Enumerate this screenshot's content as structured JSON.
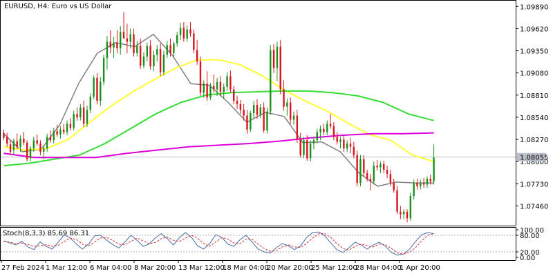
{
  "chart_header": "EURUSD, H4:  Euro vs US Dollar",
  "current_price_label": "1.08055",
  "indicator_header": "Stoch(8,3,3) 85.69 86.31",
  "colors": {
    "background": "#ffffff",
    "axis": "#000000",
    "bull": "#1a8f1a",
    "bear": "#d8141e",
    "ma_fast": "#808080",
    "ma_yellow": "#ffff33",
    "ma_green": "#33dd33",
    "ma_magenta": "#dd00dd",
    "stoch_main": "#4a6ea8",
    "stoch_signal": "#d83030",
    "price_line": "#b9bec8"
  },
  "chart_data": [
    {
      "type": "candlestick",
      "title": "EURUSD, H4:  Euro vs US Dollar",
      "ylim": [
        1.0722,
        1.0996
      ],
      "y_ticks": [
        "1.09890",
        "1.09620",
        "1.09350",
        "1.09080",
        "1.08810",
        "1.08540",
        "1.08270",
        "1.08000",
        "1.07730",
        "1.07460"
      ],
      "current_price": 1.08055,
      "x_ticks": [
        "27 Feb 2024",
        "1 Mar 12:00",
        "6 Mar 04:00",
        "8 Mar 20:00",
        "13 Mar 12:00",
        "18 Mar 04:00",
        "20 Mar 20:00",
        "25 Mar 12:00",
        "28 Mar 04:00",
        "1 Apr 20:00"
      ],
      "candles": [
        [
          1.0835,
          1.0839,
          1.0826,
          1.0829
        ],
        [
          1.083,
          1.0835,
          1.0818,
          1.0822
        ],
        [
          1.0821,
          1.0826,
          1.0808,
          1.0812
        ],
        [
          1.0814,
          1.0828,
          1.0809,
          1.0825
        ],
        [
          1.0825,
          1.0834,
          1.0815,
          1.0818
        ],
        [
          1.0818,
          1.0832,
          1.0812,
          1.0828
        ],
        [
          1.0828,
          1.0836,
          1.082,
          1.0823
        ],
        [
          1.0823,
          1.0826,
          1.08,
          1.0803
        ],
        [
          1.0804,
          1.0819,
          1.08,
          1.0816
        ],
        [
          1.0816,
          1.083,
          1.0812,
          1.0826
        ],
        [
          1.0826,
          1.0833,
          1.0819,
          1.0822
        ],
        [
          1.0822,
          1.0826,
          1.0808,
          1.0812
        ],
        [
          1.0812,
          1.082,
          1.0803,
          1.0816
        ],
        [
          1.0816,
          1.0834,
          1.0812,
          1.083
        ],
        [
          1.083,
          1.0838,
          1.0823,
          1.0826
        ],
        [
          1.0826,
          1.0841,
          1.0822,
          1.0837
        ],
        [
          1.0837,
          1.0845,
          1.083,
          1.0833
        ],
        [
          1.0833,
          1.0843,
          1.0828,
          1.0839
        ],
        [
          1.0839,
          1.0846,
          1.0833,
          1.0836
        ],
        [
          1.0836,
          1.085,
          1.0832,
          1.0846
        ],
        [
          1.0846,
          1.0853,
          1.0838,
          1.0841
        ],
        [
          1.0841,
          1.0862,
          1.0838,
          1.0858
        ],
        [
          1.0858,
          1.0866,
          1.085,
          1.0854
        ],
        [
          1.0854,
          1.087,
          1.085,
          1.0866
        ],
        [
          1.0866,
          1.0874,
          1.0842,
          1.0846
        ],
        [
          1.0846,
          1.0868,
          1.0842,
          1.0863
        ],
        [
          1.0863,
          1.0883,
          1.0859,
          1.0879
        ],
        [
          1.0879,
          1.0905,
          1.0876,
          1.0902
        ],
        [
          1.0902,
          1.0908,
          1.087,
          1.0874
        ],
        [
          1.0874,
          1.0903,
          1.0868,
          1.0897
        ],
        [
          1.0897,
          1.093,
          1.0893,
          1.0926
        ],
        [
          1.0926,
          1.0953,
          1.0912,
          1.0946
        ],
        [
          1.0946,
          1.096,
          1.0932,
          1.0939
        ],
        [
          1.0939,
          1.0952,
          1.0926,
          1.0945
        ],
        [
          1.0945,
          1.096,
          1.0932,
          1.0938
        ],
        [
          1.0938,
          1.0965,
          1.093,
          1.0958
        ],
        [
          1.0958,
          1.0982,
          1.095,
          1.095
        ],
        [
          1.095,
          1.0968,
          1.0932,
          1.0946
        ],
        [
          1.0946,
          1.0962,
          1.0938,
          1.0955
        ],
        [
          1.0955,
          1.0962,
          1.0928,
          1.0932
        ],
        [
          1.0932,
          1.0947,
          1.0928,
          1.0941
        ],
        [
          1.0941,
          1.095,
          1.0913,
          1.0917
        ],
        [
          1.0917,
          1.0933,
          1.0914,
          1.0928
        ],
        [
          1.0928,
          1.0945,
          1.0922,
          1.0941
        ],
        [
          1.0941,
          1.0948,
          1.0912,
          1.0916
        ],
        [
          1.0916,
          1.0935,
          1.091,
          1.093
        ],
        [
          1.093,
          1.0942,
          1.0922,
          1.0937
        ],
        [
          1.0937,
          1.0944,
          1.0904,
          1.0909
        ],
        [
          1.0909,
          1.0935,
          1.0905,
          1.093
        ],
        [
          1.093,
          1.0947,
          1.0926,
          1.0942
        ],
        [
          1.0942,
          1.095,
          1.0928,
          1.0932
        ],
        [
          1.0932,
          1.0946,
          1.0928,
          1.0944
        ],
        [
          1.0944,
          1.0958,
          1.094,
          1.0954
        ],
        [
          1.0954,
          1.0969,
          1.0948,
          1.0963
        ],
        [
          1.0963,
          1.097,
          1.0946,
          1.095
        ],
        [
          1.095,
          1.0966,
          1.0946,
          1.0961
        ],
        [
          1.0961,
          1.097,
          1.0952,
          1.0956
        ],
        [
          1.0956,
          1.0961,
          1.0932,
          1.0936
        ],
        [
          1.0936,
          1.0948,
          1.0918,
          1.0922
        ],
        [
          1.0922,
          1.0928,
          1.088,
          1.0884
        ],
        [
          1.0884,
          1.0899,
          1.0878,
          1.0895
        ],
        [
          1.0895,
          1.091,
          1.0874,
          1.0878
        ],
        [
          1.0878,
          1.0896,
          1.0875,
          1.0892
        ],
        [
          1.0892,
          1.0906,
          1.0884,
          1.0888
        ],
        [
          1.0888,
          1.0902,
          1.088,
          1.0897
        ],
        [
          1.0897,
          1.0904,
          1.088,
          1.0885
        ],
        [
          1.0885,
          1.0895,
          1.0876,
          1.0891
        ],
        [
          1.0891,
          1.0909,
          1.0886,
          1.0904
        ],
        [
          1.0904,
          1.0911,
          1.0884,
          1.0888
        ],
        [
          1.0888,
          1.0892,
          1.087,
          1.0874
        ],
        [
          1.0874,
          1.088,
          1.0864,
          1.087
        ],
        [
          1.087,
          1.0875,
          1.0858,
          1.0863
        ],
        [
          1.0863,
          1.087,
          1.085,
          1.0856
        ],
        [
          1.0856,
          1.0863,
          1.0834,
          1.0839
        ],
        [
          1.0839,
          1.0862,
          1.0836,
          1.0859
        ],
        [
          1.0859,
          1.0874,
          1.0853,
          1.0869
        ],
        [
          1.0869,
          1.0876,
          1.0852,
          1.0857
        ],
        [
          1.0857,
          1.087,
          1.0853,
          1.0866
        ],
        [
          1.0866,
          1.0872,
          1.0835,
          1.0838
        ],
        [
          1.0838,
          1.0866,
          1.0834,
          1.0861
        ],
        [
          1.0861,
          1.0942,
          1.0857,
          1.0936
        ],
        [
          1.0936,
          1.0943,
          1.0908,
          1.0914
        ],
        [
          1.0914,
          1.0946,
          1.0898,
          1.094
        ],
        [
          1.094,
          1.0948,
          1.0882,
          1.0888
        ],
        [
          1.0888,
          1.0899,
          1.0862,
          1.0867
        ],
        [
          1.0867,
          1.0877,
          1.0856,
          1.0872
        ],
        [
          1.0872,
          1.0878,
          1.0846,
          1.0851
        ],
        [
          1.0851,
          1.0861,
          1.0845,
          1.0856
        ],
        [
          1.0856,
          1.0863,
          1.0823,
          1.0828
        ],
        [
          1.0828,
          1.0835,
          1.0805,
          1.0808
        ],
        [
          1.0808,
          1.083,
          1.0804,
          1.0826
        ],
        [
          1.0826,
          1.0832,
          1.0801,
          1.0804
        ],
        [
          1.0804,
          1.0826,
          1.08,
          1.0822
        ],
        [
          1.0822,
          1.083,
          1.0815,
          1.0826
        ],
        [
          1.0826,
          1.084,
          1.0822,
          1.0836
        ],
        [
          1.0836,
          1.0844,
          1.0826,
          1.084
        ],
        [
          1.084,
          1.0846,
          1.0832,
          1.0836
        ],
        [
          1.0836,
          1.085,
          1.0832,
          1.0846
        ],
        [
          1.0846,
          1.0858,
          1.084,
          1.0843
        ],
        [
          1.0843,
          1.0848,
          1.0826,
          1.083
        ],
        [
          1.083,
          1.0836,
          1.0821,
          1.0824
        ],
        [
          1.0824,
          1.083,
          1.0816,
          1.0827
        ],
        [
          1.0827,
          1.0832,
          1.0812,
          1.0816
        ],
        [
          1.0816,
          1.0826,
          1.0812,
          1.0822
        ],
        [
          1.0822,
          1.0829,
          1.081,
          1.0818
        ],
        [
          1.0818,
          1.0824,
          1.0804,
          1.0808
        ],
        [
          1.0808,
          1.0813,
          1.077,
          1.0774
        ],
        [
          1.0774,
          1.0808,
          1.077,
          1.0803
        ],
        [
          1.0803,
          1.0808,
          1.0782,
          1.0786
        ],
        [
          1.0786,
          1.079,
          1.0776,
          1.0779
        ],
        [
          1.0779,
          1.0785,
          1.0765,
          1.0776
        ],
        [
          1.0776,
          1.08,
          1.0772,
          1.0795
        ],
        [
          1.0795,
          1.0802,
          1.0789,
          1.0793
        ],
        [
          1.0793,
          1.08,
          1.0786,
          1.0797
        ],
        [
          1.0797,
          1.0801,
          1.0786,
          1.079
        ],
        [
          1.079,
          1.0795,
          1.078,
          1.0785
        ],
        [
          1.0785,
          1.079,
          1.077,
          1.0774
        ],
        [
          1.0774,
          1.0779,
          1.0762,
          1.0765
        ],
        [
          1.0765,
          1.077,
          1.0736,
          1.0739
        ],
        [
          1.0739,
          1.0746,
          1.073,
          1.0736
        ],
        [
          1.0736,
          1.0742,
          1.073,
          1.0739
        ],
        [
          1.0739,
          1.0742,
          1.0726,
          1.0731
        ],
        [
          1.0731,
          1.0762,
          1.0728,
          1.0758
        ],
        [
          1.0758,
          1.0778,
          1.0754,
          1.0774
        ],
        [
          1.0774,
          1.0779,
          1.0766,
          1.077
        ],
        [
          1.077,
          1.0778,
          1.0766,
          1.0774
        ],
        [
          1.0774,
          1.078,
          1.0768,
          1.0772
        ],
        [
          1.0772,
          1.0782,
          1.0768,
          1.0779
        ],
        [
          1.0779,
          1.0784,
          1.0772,
          1.0776
        ],
        [
          1.0776,
          1.0821,
          1.0772,
          1.0805
        ]
      ],
      "series": [
        {
          "values": [
            1.0834,
            1.0812,
            1.0815,
            1.0845,
            1.0895,
            1.0932,
            1.0945,
            1.094,
            1.0955,
            1.093,
            1.0895,
            1.0893,
            1.0872,
            1.0848,
            1.086,
            1.0855,
            1.0823,
            1.0824,
            1.0812,
            1.0786,
            1.077,
            1.0775,
            1.0774,
            1.0774
          ]
        },
        {
          "values": [
            1.0818,
            1.0814,
            1.0816,
            1.0827,
            1.0848,
            1.0868,
            1.0885,
            1.09,
            1.0914,
            1.0924,
            1.0924,
            1.0918,
            1.0905,
            1.0888,
            1.0874,
            1.0862,
            1.0847,
            1.0833,
            1.0826,
            1.0808,
            1.08
          ]
        },
        {
          "values": [
            1.0795,
            1.0798,
            1.0803,
            1.0808,
            1.0822,
            1.084,
            1.0858,
            1.0872,
            1.0881,
            1.0884,
            1.0885,
            1.0886,
            1.0886,
            1.0884,
            1.088,
            1.0872,
            1.0858,
            1.085
          ]
        },
        {
          "values": [
            1.081,
            1.0805,
            1.0805,
            1.0805,
            1.081,
            1.0814,
            1.0818,
            1.082,
            1.0822,
            1.0825,
            1.0829,
            1.0832,
            1.0834,
            1.0834,
            1.0835
          ]
        }
      ]
    },
    {
      "type": "line",
      "title": "Stoch(8,3,3) 85.69 86.31",
      "ylim": [
        0,
        100
      ],
      "y_ticks": [
        "100.00",
        "80.00",
        "20.00",
        "0.00"
      ],
      "levels": [
        80,
        20
      ],
      "series": [
        {
          "values": [
            60,
            52,
            45,
            58,
            38,
            28,
            56,
            40,
            30,
            55,
            82,
            70,
            48,
            30,
            48,
            78,
            80,
            62,
            46,
            34,
            56,
            80,
            62,
            40,
            48,
            70,
            86,
            68,
            45,
            72,
            90,
            72,
            42,
            30,
            50,
            82,
            72,
            48,
            40,
            64,
            80,
            56,
            30,
            20,
            15,
            35,
            50,
            42,
            28,
            42,
            72,
            90,
            92,
            78,
            52,
            28,
            18,
            35,
            55,
            45,
            30,
            45,
            55,
            40,
            18,
            8,
            12,
            30,
            58,
            82,
            90,
            86
          ]
        },
        {
          "values": [
            58,
            55,
            50,
            52,
            47,
            40,
            42,
            46,
            40,
            44,
            58,
            70,
            65,
            48,
            42,
            56,
            70,
            72,
            62,
            48,
            46,
            58,
            70,
            60,
            50,
            54,
            68,
            74,
            62,
            58,
            70,
            80,
            70,
            50,
            40,
            56,
            72,
            66,
            52,
            50,
            66,
            66,
            48,
            32,
            22,
            25,
            38,
            45,
            38,
            36,
            50,
            70,
            86,
            86,
            72,
            50,
            32,
            26,
            40,
            48,
            42,
            38,
            48,
            46,
            32,
            16,
            12,
            18,
            36,
            60,
            80,
            86
          ]
        }
      ]
    }
  ]
}
